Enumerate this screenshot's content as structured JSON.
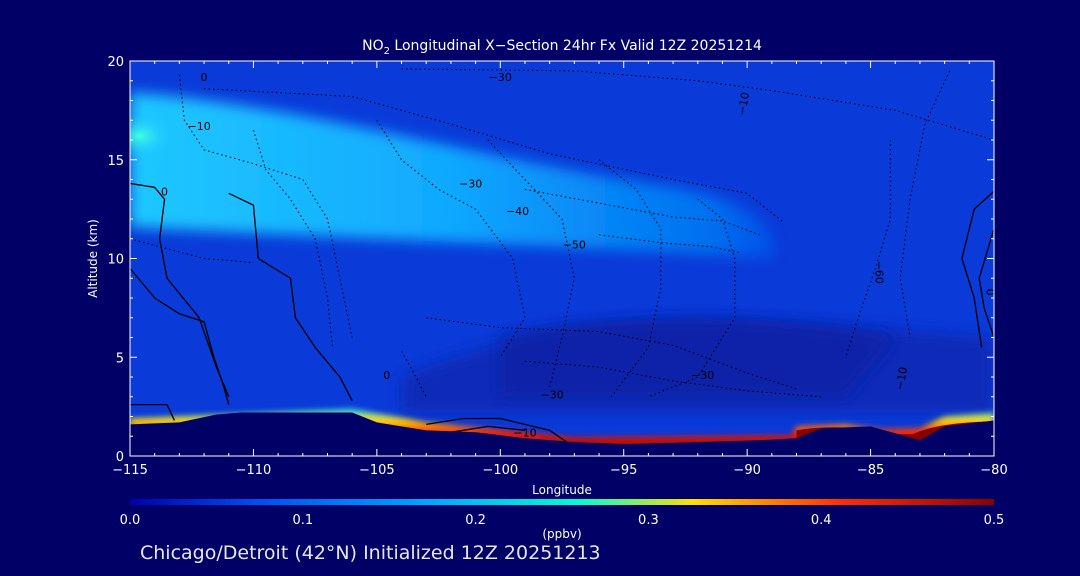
{
  "chart_data": {
    "type": "heatmap",
    "title": "NO2 Longitudinal X-Section 24hr  Fx Valid 12Z 20251214",
    "title_parts": {
      "prefix": "NO",
      "subscript": "2",
      "suffix": " Longitudinal X−Section 24hr  Fx Valid 12Z 20251214"
    },
    "xlabel": "Longitude",
    "ylabel": "Altitude (km)",
    "xlim": [
      -115,
      -80
    ],
    "ylim": [
      0,
      20
    ],
    "x_ticks": [
      -115,
      -110,
      -105,
      -100,
      -95,
      -90,
      -85,
      -80
    ],
    "x_tick_labels": [
      "−115",
      "−110",
      "−105",
      "−100",
      "−95",
      "−90",
      "−85",
      "−80"
    ],
    "y_ticks": [
      0,
      5,
      10,
      15,
      20
    ],
    "y_tick_labels": [
      "0",
      "5",
      "10",
      "15",
      "20"
    ],
    "colorbar": {
      "range": [
        0.0,
        0.5
      ],
      "ticks": [
        0.0,
        0.1,
        0.2,
        0.3,
        0.4,
        0.5
      ],
      "tick_labels": [
        "0.0",
        "0.1",
        "0.2",
        "0.3",
        "0.4",
        "0.5"
      ],
      "units": "(ppbv)",
      "colors": [
        "#0000aa",
        "#0050f0",
        "#00a8ff",
        "#00ffd0",
        "#ffe000",
        "#ff3000",
        "#8b0000"
      ]
    },
    "terrain_km": [
      [
        -115,
        1.6
      ],
      [
        -113,
        1.7
      ],
      [
        -111.5,
        2.1
      ],
      [
        -110.5,
        2.2
      ],
      [
        -106,
        2.2
      ],
      [
        -105,
        1.7
      ],
      [
        -103,
        1.3
      ],
      [
        -101,
        1.2
      ],
      [
        -99,
        0.9
      ],
      [
        -97,
        0.7
      ],
      [
        -95,
        0.6
      ],
      [
        -92,
        0.7
      ],
      [
        -89.5,
        0.8
      ],
      [
        -88,
        0.9
      ],
      [
        -87,
        1.4
      ],
      [
        -85,
        1.5
      ],
      [
        -83,
        0.8
      ],
      [
        -82,
        1.5
      ],
      [
        -80,
        1.8
      ]
    ],
    "field_regions": [
      {
        "level": "high-altitude",
        "value": 0.13,
        "lon_range": [
          -115,
          -88
        ],
        "alt_range_km": [
          11,
          18.5
        ]
      },
      {
        "level": "peak",
        "value": 0.18,
        "lon_range": [
          -115,
          -113
        ],
        "alt_range_km": [
          15.5,
          17
        ]
      },
      {
        "level": "background",
        "value": 0.05,
        "lon_range": [
          -115,
          -80
        ],
        "alt_range_km": [
          3,
          11
        ]
      },
      {
        "level": "boundary-layer",
        "value": 0.5,
        "lon_range": [
          -88,
          -80
        ],
        "alt_range_km": [
          0,
          1.7
        ]
      }
    ],
    "contour_labels": [
      "−30",
      "−10",
      "−10",
      "−30",
      "−40",
      "−50",
      "−60",
      "0",
      "−30",
      "−30",
      "−10",
      "0",
      "−10",
      "−10",
      "0",
      "0"
    ],
    "footer": "Chicago/Detroit (42°N) Initialized 12Z 20251213"
  }
}
